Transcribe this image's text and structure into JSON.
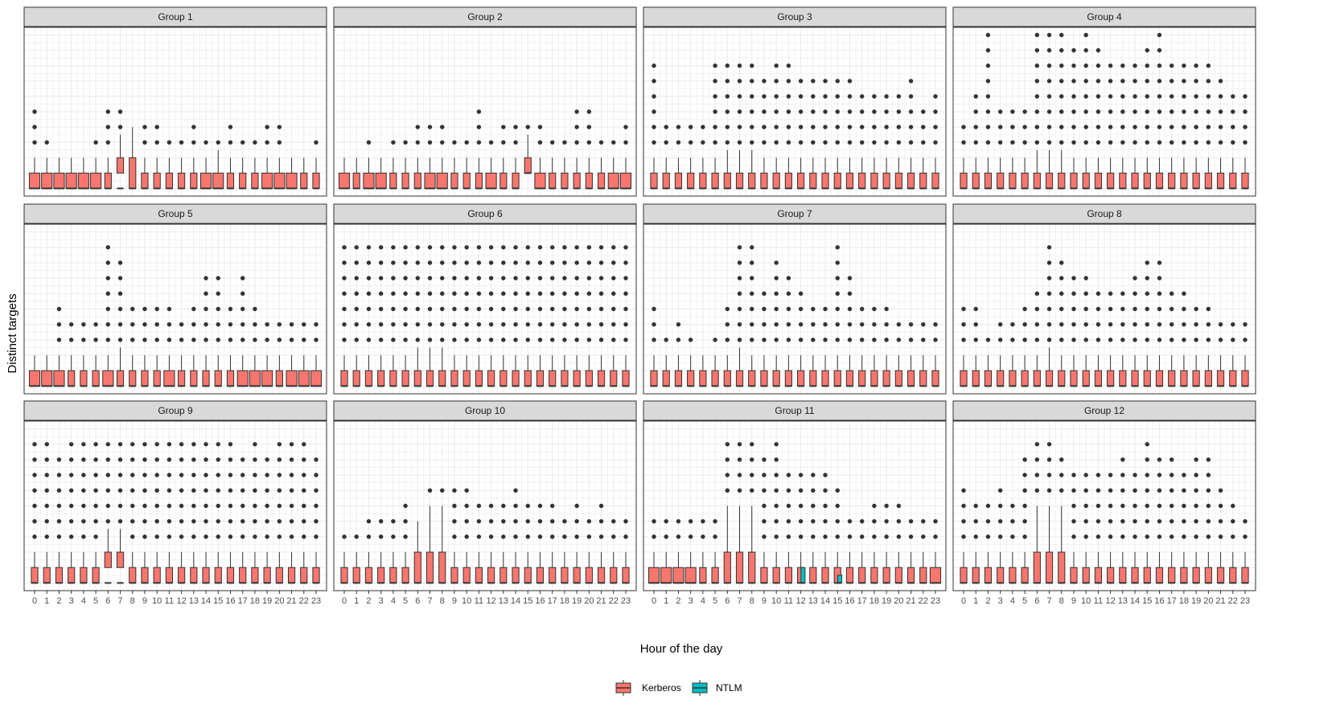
{
  "chart_data": {
    "type": "boxplot",
    "layout": "facet_wrap 3x4",
    "xlabel": "Hour of the day",
    "ylabel": "Distinct targets",
    "x": [
      "0",
      "1",
      "2",
      "3",
      "4",
      "5",
      "6",
      "7",
      "8",
      "9",
      "10",
      "11",
      "12",
      "13",
      "14",
      "15",
      "16",
      "17",
      "18",
      "19",
      "20",
      "21",
      "22",
      "23"
    ],
    "legend": [
      {
        "name": "Kerberos",
        "color": "#f8766d"
      },
      {
        "name": "NTLM",
        "color": "#00bfc4"
      }
    ],
    "panels": [
      {
        "title": "Group 1",
        "max": [
          6,
          4,
          3,
          3,
          3,
          4,
          6,
          6,
          5,
          5,
          5,
          4,
          4,
          5,
          4,
          4,
          5,
          4,
          4,
          5,
          5,
          3,
          3,
          4
        ],
        "wide": [
          0,
          1,
          2,
          3,
          4,
          5,
          14,
          15,
          19,
          20,
          21
        ],
        "special": {
          "7": [
            2,
            3,
            1
          ],
          "8": [
            1,
            3,
            1
          ],
          "15": [
            1,
            2,
            1
          ]
        }
      },
      {
        "title": "Group 2",
        "max": [
          3,
          3,
          4,
          3,
          4,
          4,
          5,
          5,
          5,
          4,
          4,
          6,
          4,
          5,
          5,
          5,
          5,
          4,
          4,
          6,
          6,
          4,
          4,
          5
        ],
        "wide": [
          0,
          2,
          3,
          7,
          8,
          12,
          16,
          22,
          23
        ],
        "special": {
          "15": [
            2,
            3,
            2
          ]
        }
      },
      {
        "title": "Group 3",
        "max": [
          9,
          5,
          5,
          5,
          5,
          9,
          9,
          9,
          9,
          8,
          9,
          9,
          8,
          8,
          8,
          8,
          8,
          7,
          7,
          7,
          7,
          8,
          6,
          7
        ],
        "wide": [],
        "special": {
          "6": [
            1,
            2,
            1
          ],
          "7": [
            1,
            2,
            1
          ],
          "8": [
            1,
            2,
            1
          ]
        }
      },
      {
        "title": "Group 4",
        "max": [
          5,
          7,
          11,
          6,
          6,
          6,
          11,
          11,
          11,
          10,
          11,
          10,
          9,
          9,
          9,
          10,
          11,
          9,
          9,
          9,
          9,
          8,
          7,
          7
        ],
        "wide": [],
        "special": {
          "6": [
            1,
            2,
            1
          ],
          "7": [
            1,
            2,
            1
          ],
          "8": [
            1,
            2,
            1
          ]
        }
      },
      {
        "title": "Group 5",
        "max": [
          3,
          3,
          6,
          5,
          5,
          5,
          10,
          9,
          6,
          6,
          6,
          6,
          5,
          6,
          8,
          8,
          6,
          8,
          6,
          5,
          5,
          5,
          5,
          5
        ],
        "wide": [
          0,
          1,
          2,
          6,
          11,
          17,
          18,
          19,
          21,
          22,
          23
        ],
        "special": {
          "7": [
            1,
            2,
            1
          ]
        }
      },
      {
        "title": "Group 6",
        "max": [
          10,
          10,
          10,
          10,
          10,
          10,
          10,
          10,
          10,
          10,
          10,
          10,
          10,
          10,
          10,
          10,
          10,
          10,
          10,
          10,
          10,
          10,
          10,
          10
        ],
        "wide": [],
        "special": {
          "6": [
            1,
            2,
            1
          ],
          "7": [
            1,
            2,
            1
          ],
          "8": [
            1,
            2,
            1
          ]
        }
      },
      {
        "title": "Group 7",
        "max": [
          6,
          4,
          5,
          4,
          3,
          4,
          6,
          10,
          10,
          7,
          9,
          8,
          7,
          6,
          6,
          10,
          8,
          6,
          6,
          6,
          5,
          5,
          5,
          5
        ],
        "wide": [],
        "special": {
          "7": [
            1,
            2,
            1
          ]
        }
      },
      {
        "title": "Group 8",
        "max": [
          6,
          6,
          4,
          5,
          5,
          6,
          7,
          10,
          9,
          8,
          8,
          7,
          7,
          7,
          8,
          9,
          9,
          7,
          7,
          6,
          6,
          5,
          5,
          5
        ],
        "wide": [],
        "special": {
          "7": [
            1,
            2,
            1
          ]
        }
      },
      {
        "title": "Group 9",
        "max": [
          10,
          10,
          9,
          10,
          10,
          10,
          10,
          10,
          10,
          10,
          10,
          10,
          10,
          10,
          10,
          10,
          10,
          9,
          10,
          9,
          10,
          10,
          10,
          9
        ],
        "wide": [],
        "special": {
          "6": [
            2,
            3,
            1
          ],
          "7": [
            2,
            3,
            1
          ]
        }
      },
      {
        "title": "Group 10",
        "max": [
          4,
          4,
          5,
          5,
          5,
          6,
          5,
          7,
          7,
          7,
          7,
          6,
          6,
          6,
          7,
          6,
          6,
          6,
          5,
          6,
          5,
          6,
          5,
          5
        ],
        "wide": [],
        "special": {
          "6": [
            1,
            3,
            1
          ],
          "7": [
            1,
            3,
            1
          ],
          "8": [
            1,
            3,
            1
          ]
        }
      },
      {
        "title": "Group 11",
        "max": [
          5,
          5,
          5,
          5,
          5,
          5,
          10,
          10,
          10,
          9,
          10,
          8,
          8,
          8,
          8,
          7,
          5,
          5,
          6,
          6,
          6,
          5,
          5,
          5
        ],
        "wide": [
          0,
          1,
          2,
          3,
          23
        ],
        "special": {
          "6": [
            1,
            3,
            1
          ],
          "7": [
            1,
            3,
            1
          ],
          "8": [
            1,
            3,
            1
          ]
        },
        "ntlm": [
          {
            "hour": "12",
            "box": [
              1,
              2,
              1
            ]
          },
          {
            "hour": "15",
            "box": [
              1,
              1.5,
              1
            ]
          }
        ]
      },
      {
        "title": "Group 12",
        "max": [
          7,
          6,
          6,
          7,
          6,
          9,
          10,
          10,
          9,
          8,
          8,
          8,
          8,
          9,
          8,
          10,
          9,
          9,
          8,
          9,
          9,
          7,
          6,
          5
        ],
        "wide": [],
        "special": {
          "6": [
            1,
            3,
            1
          ],
          "7": [
            1,
            3,
            1
          ],
          "8": [
            1,
            3,
            1
          ]
        }
      }
    ]
  }
}
